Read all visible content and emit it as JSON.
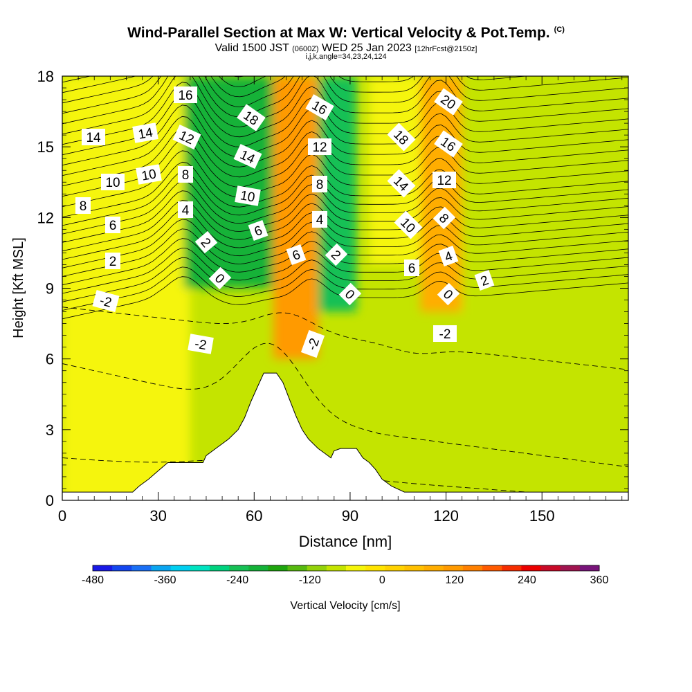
{
  "header": {
    "title": "Wind-Parallel Section at Max W: Vertical Velocity & Pot.Temp.",
    "copyright": "(C)",
    "valid_prefix": "Valid 1500 JST",
    "valid_utc": "(0600Z)",
    "valid_date": "WED 25 Jan 2023",
    "forecast": "[12hrFcst@2150z]",
    "section_info": "i,j,k,angle=34,23,24,124"
  },
  "chart_data": {
    "type": "heatmap",
    "xlabel": "Distance [nm]",
    "ylabel": "Height [Kft MSL]",
    "xlim": [
      0,
      177
    ],
    "ylim": [
      0,
      18
    ],
    "x_ticks": [
      "0",
      "30",
      "60",
      "90",
      "120",
      "150"
    ],
    "y_ticks": [
      "0",
      "3",
      "6",
      "9",
      "12",
      "15",
      "18"
    ],
    "colorbar": {
      "label": "Vertical Velocity [cm/s]",
      "tick_labels": [
        "-480",
        "-360",
        "-240",
        "-120",
        "0",
        "120",
        "240",
        "360"
      ],
      "levels_min": -480,
      "levels_max": 360,
      "level_step": 40,
      "colors": [
        "#1919e6",
        "#1346ef",
        "#1a6ff5",
        "#0aa5f0",
        "#00cff0",
        "#00e3c0",
        "#00d27e",
        "#16c055",
        "#14b238",
        "#1ea50e",
        "#56b90f",
        "#93d20a",
        "#c4e400",
        "#f5f50a",
        "#ffe400",
        "#ffd200",
        "#ffc000",
        "#ffad00",
        "#ff9a00",
        "#ff8000",
        "#ff5a00",
        "#f52d00",
        "#eb0000",
        "#c80a28",
        "#a01450",
        "#78147a"
      ]
    },
    "vertical_velocity_regions_cm_s": [
      {
        "x_range": [
          0,
          40
        ],
        "z_range": [
          0,
          18
        ],
        "value": 40
      },
      {
        "x_range": [
          38,
          66
        ],
        "z_range": [
          9,
          18
        ],
        "value": -140
      },
      {
        "x_range": [
          66,
          80
        ],
        "z_range": [
          6,
          18
        ],
        "value": 240
      },
      {
        "x_range": [
          80,
          92
        ],
        "z_range": [
          8,
          18
        ],
        "value": -200
      },
      {
        "x_range": [
          96,
          112
        ],
        "z_range": [
          10,
          18
        ],
        "value": 60
      },
      {
        "x_range": [
          112,
          125
        ],
        "z_range": [
          8,
          18
        ],
        "value": 200
      },
      {
        "x_range": [
          125,
          177
        ],
        "z_range": [
          0,
          18
        ],
        "value": 10
      }
    ],
    "pot_temp_contour_labels": [
      "16",
      "14",
      "14",
      "12",
      "10",
      "10",
      "8",
      "8",
      "6",
      "4",
      "2",
      "-2",
      "2",
      "0",
      "-2",
      "18",
      "14",
      "10",
      "6",
      "16",
      "12",
      "8",
      "4",
      "6",
      "2",
      "-2",
      "0",
      "18",
      "14",
      "10",
      "6",
      "20",
      "16",
      "12",
      "8",
      "4",
      "0",
      "-2",
      "2"
    ],
    "terrain_kft": [
      [
        0,
        0.35
      ],
      [
        22,
        0.35
      ],
      [
        24,
        0.6
      ],
      [
        27,
        0.9
      ],
      [
        30,
        1.25
      ],
      [
        33,
        1.6
      ],
      [
        44,
        1.6
      ],
      [
        45,
        1.9
      ],
      [
        48,
        2.2
      ],
      [
        52,
        2.6
      ],
      [
        55,
        3.0
      ],
      [
        57,
        3.5
      ],
      [
        59,
        4.2
      ],
      [
        61,
        4.8
      ],
      [
        63,
        5.4
      ],
      [
        67,
        5.4
      ],
      [
        69,
        5.0
      ],
      [
        71,
        4.3
      ],
      [
        73,
        3.6
      ],
      [
        75,
        3.0
      ],
      [
        77,
        2.6
      ],
      [
        80,
        2.2
      ],
      [
        82,
        2.0
      ],
      [
        84,
        1.8
      ],
      [
        85,
        2.1
      ],
      [
        87,
        2.2
      ],
      [
        92,
        2.2
      ],
      [
        94,
        1.8
      ],
      [
        96,
        1.6
      ],
      [
        98,
        1.3
      ],
      [
        100,
        0.9
      ],
      [
        103,
        0.6
      ],
      [
        107,
        0.35
      ],
      [
        177,
        0.35
      ]
    ]
  }
}
